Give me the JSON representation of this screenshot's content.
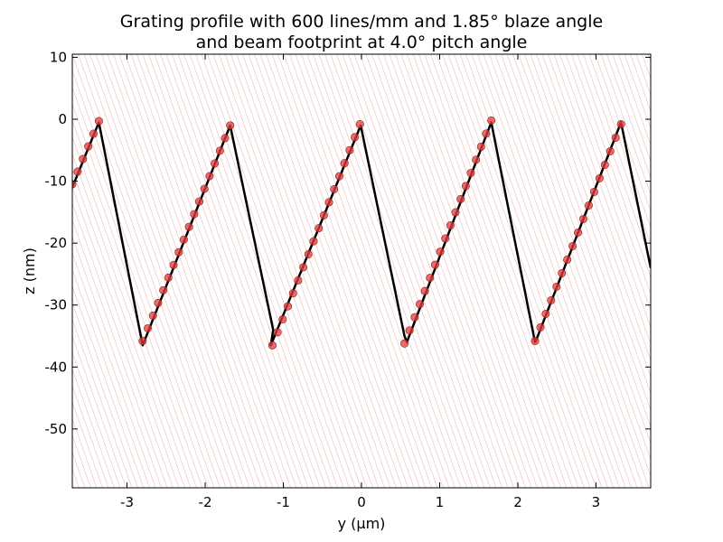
{
  "chart_data": {
    "type": "line",
    "title_line1": "Grating profile with 600 lines/mm and 1.85° blaze angle",
    "title_line2": "and beam footprint at 4.0° pitch angle",
    "xlabel": "y (µm)",
    "ylabel": "z (nm)",
    "xlim": [
      -3.7,
      3.7
    ],
    "ylim": [
      -59.5,
      10.5
    ],
    "xticks": [
      -3,
      -2,
      -1,
      0,
      1,
      2,
      3
    ],
    "yticks": [
      10,
      0,
      -10,
      -20,
      -30,
      -40,
      -50
    ],
    "grid": false,
    "pitch_angle_deg": 4.0,
    "series": [
      {
        "style": "profile",
        "color": "#000000",
        "x": [
          -3.7,
          -3.36,
          -2.8,
          -1.68,
          -1.13,
          -1.16,
          -0.01,
          0.55,
          0.58,
          1.66,
          2.22,
          2.24,
          3.32,
          3.7
        ],
        "y": [
          -11.0,
          -0.5,
          -36.5,
          -1.0,
          -34.0,
          -36.5,
          -1.0,
          -35.0,
          -36.0,
          -0.5,
          -36.0,
          -35.5,
          -0.5,
          -24.0
        ]
      },
      {
        "style": "markers",
        "color": "#e8393a",
        "ramps": [
          {
            "x_start": -3.7,
            "x_end": -3.36,
            "z_start": -10.5,
            "z_end": -0.3
          },
          {
            "x_start": -2.8,
            "x_end": -1.68,
            "z_start": -35.8,
            "z_end": -1.0
          },
          {
            "x_start": -1.14,
            "x_end": -0.02,
            "z_start": -36.5,
            "z_end": -0.8
          },
          {
            "x_start": 0.55,
            "x_end": 1.66,
            "z_start": -36.2,
            "z_end": -0.2
          },
          {
            "x_start": 2.22,
            "x_end": 3.32,
            "z_start": -35.8,
            "z_end": -0.8
          }
        ],
        "spacing_um": 0.0667
      },
      {
        "style": "beam-rays",
        "color": "#f2b8b8"
      }
    ]
  }
}
